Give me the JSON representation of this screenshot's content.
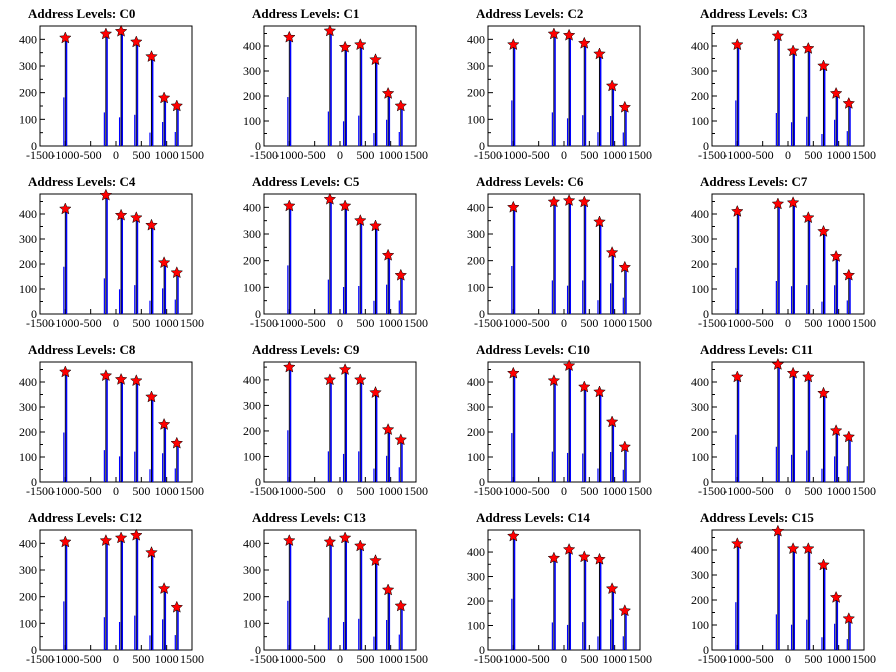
{
  "colors": {
    "bar": "#0000ff",
    "star": "#ff0000",
    "star_outline": "#000000",
    "axis": "#000000"
  },
  "common_axes": {
    "xlim": [
      -1500,
      1500
    ],
    "xticks": [
      "-1500",
      "-1000",
      "-500",
      "0",
      "500",
      "1000",
      "1500"
    ],
    "yticks_500": [
      "0",
      "100",
      "200",
      "300",
      "400"
    ],
    "yticks_450": [
      "0",
      "100",
      "200",
      "300",
      "400"
    ]
  },
  "peak_positions": [
    -1000,
    -200,
    100,
    400,
    700,
    950,
    1200
  ],
  "chart_data": [
    {
      "type": "bar",
      "title": "Address Levels: C0",
      "ylim": [
        0,
        450
      ],
      "peaks": [
        405,
        420,
        430,
        390,
        335,
        180,
        150
      ]
    },
    {
      "type": "bar",
      "title": "Address Levels: C1",
      "ylim": [
        0,
        480
      ],
      "peaks": [
        435,
        460,
        395,
        405,
        345,
        210,
        160
      ]
    },
    {
      "type": "bar",
      "title": "Address Levels: C2",
      "ylim": [
        0,
        450
      ],
      "peaks": [
        380,
        420,
        415,
        385,
        345,
        225,
        145
      ]
    },
    {
      "type": "bar",
      "title": "Address Levels: C3",
      "ylim": [
        0,
        480
      ],
      "peaks": [
        405,
        440,
        380,
        390,
        320,
        210,
        170
      ]
    },
    {
      "type": "bar",
      "title": "Address Levels: C4",
      "ylim": [
        0,
        480
      ],
      "peaks": [
        420,
        475,
        395,
        385,
        355,
        205,
        165
      ]
    },
    {
      "type": "bar",
      "title": "Address Levels: C5",
      "ylim": [
        0,
        450
      ],
      "peaks": [
        405,
        430,
        405,
        350,
        330,
        220,
        145
      ]
    },
    {
      "type": "bar",
      "title": "Address Levels: C6",
      "ylim": [
        0,
        450
      ],
      "peaks": [
        400,
        420,
        425,
        420,
        345,
        230,
        175
      ]
    },
    {
      "type": "bar",
      "title": "Address Levels: C7",
      "ylim": [
        0,
        480
      ],
      "peaks": [
        410,
        440,
        445,
        385,
        330,
        230,
        155
      ]
    },
    {
      "type": "bar",
      "title": "Address Levels: C8",
      "ylim": [
        0,
        480
      ],
      "peaks": [
        440,
        425,
        410,
        405,
        340,
        230,
        155
      ]
    },
    {
      "type": "bar",
      "title": "Address Levels: C9",
      "ylim": [
        0,
        470
      ],
      "peaks": [
        450,
        400,
        440,
        400,
        350,
        205,
        165
      ]
    },
    {
      "type": "bar",
      "title": "Address Levels: C10",
      "ylim": [
        0,
        480
      ],
      "peaks": [
        435,
        405,
        465,
        380,
        360,
        240,
        140
      ]
    },
    {
      "type": "bar",
      "title": "Address Levels: C11",
      "ylim": [
        0,
        480
      ],
      "peaks": [
        420,
        470,
        435,
        420,
        355,
        205,
        180
      ]
    },
    {
      "type": "bar",
      "title": "Address Levels: C12",
      "ylim": [
        0,
        450
      ],
      "peaks": [
        405,
        410,
        420,
        430,
        365,
        230,
        160
      ]
    },
    {
      "type": "bar",
      "title": "Address Levels: C13",
      "ylim": [
        0,
        450
      ],
      "peaks": [
        410,
        405,
        420,
        390,
        335,
        225,
        165
      ]
    },
    {
      "type": "bar",
      "title": "Address Levels: C14",
      "ylim": [
        0,
        490
      ],
      "peaks": [
        465,
        375,
        410,
        380,
        370,
        250,
        160
      ]
    },
    {
      "type": "bar",
      "title": "Address Levels: C15",
      "ylim": [
        0,
        480
      ],
      "peaks": [
        425,
        475,
        405,
        405,
        340,
        210,
        125
      ]
    }
  ]
}
